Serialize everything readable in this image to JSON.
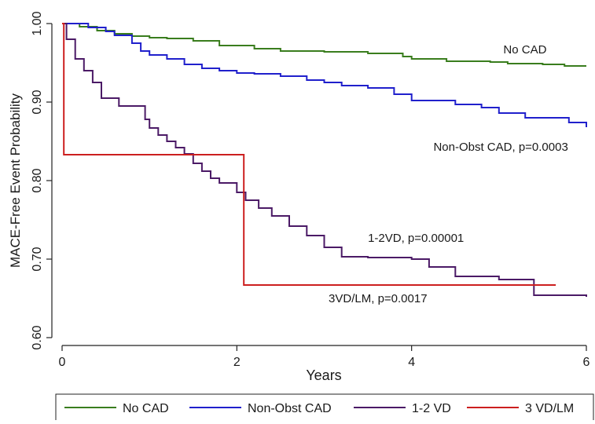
{
  "chart_data": {
    "type": "line",
    "step": true,
    "title": "",
    "xlabel": "Years",
    "ylabel": "MACE-Free Event Probability",
    "xlim": [
      0,
      6
    ],
    "ylim": [
      0.6,
      1.0
    ],
    "xticks": [
      0,
      2,
      4,
      6
    ],
    "yticks": [
      0.6,
      0.7,
      0.8,
      0.9,
      1.0
    ],
    "xtick_labels": [
      "0",
      "2",
      "4",
      "6"
    ],
    "ytick_labels": [
      "0.60",
      "0.70",
      "0.80",
      "0.90",
      "1.00"
    ],
    "grid": false,
    "legend_position": "bottom",
    "series": [
      {
        "name": "No CAD",
        "color": "#3a7d1e",
        "x": [
          0,
          0.2,
          0.4,
          0.6,
          0.8,
          1.0,
          1.2,
          1.5,
          1.8,
          2.2,
          2.5,
          3.0,
          3.5,
          3.9,
          4.0,
          4.4,
          4.9,
          5.1,
          5.5,
          5.75,
          6.0
        ],
        "y": [
          1.0,
          0.996,
          0.991,
          0.987,
          0.984,
          0.982,
          0.981,
          0.978,
          0.972,
          0.968,
          0.965,
          0.964,
          0.962,
          0.958,
          0.955,
          0.952,
          0.951,
          0.949,
          0.948,
          0.946,
          0.946
        ]
      },
      {
        "name": "Non-Obst CAD",
        "color": "#2020cc",
        "x": [
          0,
          0.3,
          0.5,
          0.6,
          0.8,
          0.9,
          1.0,
          1.2,
          1.4,
          1.6,
          1.8,
          2.0,
          2.2,
          2.5,
          2.8,
          3.0,
          3.2,
          3.5,
          3.8,
          4.0,
          4.5,
          4.8,
          5.0,
          5.3,
          5.8,
          6.0
        ],
        "y": [
          1.0,
          0.995,
          0.99,
          0.985,
          0.975,
          0.965,
          0.96,
          0.955,
          0.948,
          0.943,
          0.94,
          0.937,
          0.936,
          0.933,
          0.928,
          0.925,
          0.921,
          0.918,
          0.91,
          0.902,
          0.897,
          0.893,
          0.886,
          0.88,
          0.874,
          0.868
        ]
      },
      {
        "name": "1-2 VD",
        "color": "#4b1a66",
        "x": [
          0,
          0.05,
          0.15,
          0.25,
          0.35,
          0.45,
          0.65,
          0.95,
          1.0,
          1.1,
          1.2,
          1.3,
          1.4,
          1.5,
          1.6,
          1.7,
          1.8,
          2.0,
          2.1,
          2.25,
          2.4,
          2.6,
          2.8,
          3.0,
          3.2,
          3.5,
          4.0,
          4.2,
          4.5,
          5.0,
          5.4,
          6.0
        ],
        "y": [
          1.0,
          0.98,
          0.955,
          0.94,
          0.925,
          0.905,
          0.895,
          0.878,
          0.867,
          0.858,
          0.85,
          0.842,
          0.834,
          0.822,
          0.812,
          0.803,
          0.797,
          0.785,
          0.775,
          0.765,
          0.755,
          0.742,
          0.73,
          0.715,
          0.703,
          0.702,
          0.7,
          0.69,
          0.678,
          0.674,
          0.654,
          0.652
        ]
      },
      {
        "name": "3 VD/LM",
        "color": "#cc1f1f",
        "x": [
          0,
          0.02,
          2.08,
          5.65
        ],
        "y": [
          1.0,
          0.833,
          0.667,
          0.667
        ]
      }
    ],
    "annotations": [
      {
        "text": "No CAD",
        "x": 5.05,
        "y": 0.962
      },
      {
        "text": "Non-Obst CAD, p=0.0003",
        "x": 4.25,
        "y": 0.838
      },
      {
        "text": "1-2VD, p=0.00001",
        "x": 3.5,
        "y": 0.722
      },
      {
        "text": "3VD/LM,  p=0.0017",
        "x": 3.05,
        "y": 0.645
      }
    ]
  }
}
